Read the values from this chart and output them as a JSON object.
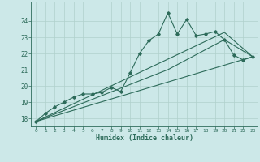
{
  "xlabel": "Humidex (Indice chaleur)",
  "bg_color": "#cce8e8",
  "grid_color": "#b0d0cc",
  "line_color": "#2d6b5a",
  "xlim": [
    -0.5,
    23.5
  ],
  "ylim": [
    17.5,
    25.2
  ],
  "yticks": [
    18,
    19,
    20,
    21,
    22,
    23,
    24
  ],
  "xticks": [
    0,
    1,
    2,
    3,
    4,
    5,
    6,
    7,
    8,
    9,
    10,
    11,
    12,
    13,
    14,
    15,
    16,
    17,
    18,
    19,
    20,
    21,
    22,
    23
  ],
  "series_zigzag": {
    "x": [
      0,
      1,
      2,
      3,
      4,
      5,
      6,
      7,
      8,
      9,
      10,
      11,
      12,
      13,
      14,
      15,
      16,
      17,
      18,
      19,
      20,
      21,
      22,
      23
    ],
    "y": [
      17.8,
      18.3,
      18.7,
      19.0,
      19.3,
      19.5,
      19.5,
      19.6,
      19.9,
      19.65,
      20.8,
      22.0,
      22.8,
      23.2,
      24.5,
      23.2,
      24.1,
      23.1,
      23.2,
      23.35,
      22.85,
      21.9,
      21.6,
      21.8
    ]
  },
  "series_line1": {
    "x": [
      0,
      14,
      20,
      23
    ],
    "y": [
      17.8,
      21.0,
      22.85,
      21.8
    ]
  },
  "series_line2": {
    "x": [
      0,
      20,
      23
    ],
    "y": [
      17.8,
      23.3,
      21.8
    ]
  },
  "series_line3": {
    "x": [
      0,
      23
    ],
    "y": [
      17.8,
      21.8
    ]
  }
}
